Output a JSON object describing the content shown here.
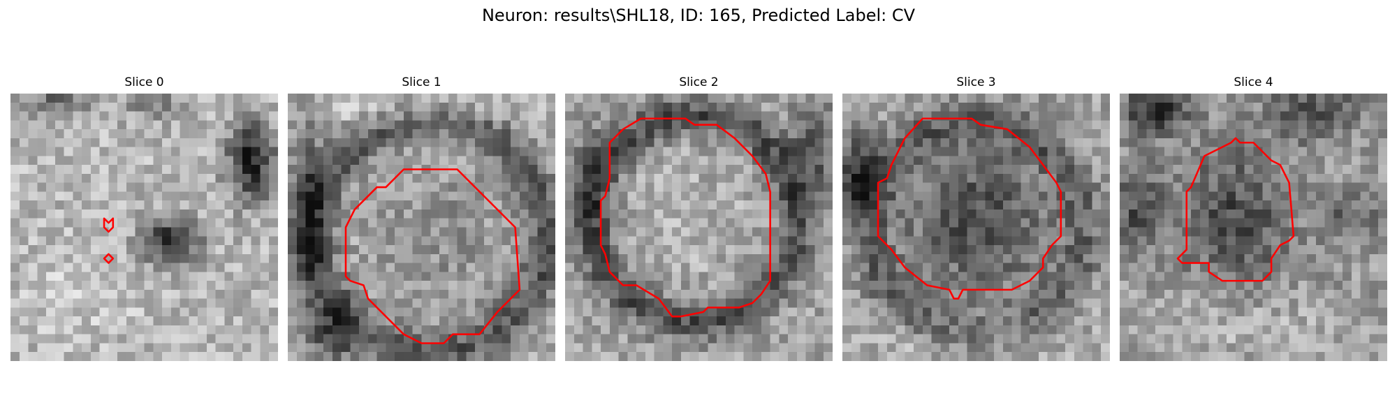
{
  "figure": {
    "title": "Neuron: results\\SHL18, ID: 165, Predicted Label: CV"
  },
  "colors": {
    "contour": "#ff0000",
    "background": "#ffffff"
  },
  "panels": [
    {
      "title": "Slice 0"
    },
    {
      "title": "Slice 1"
    },
    {
      "title": "Slice 2"
    },
    {
      "title": "Slice 3"
    },
    {
      "title": "Slice 4"
    }
  ]
}
